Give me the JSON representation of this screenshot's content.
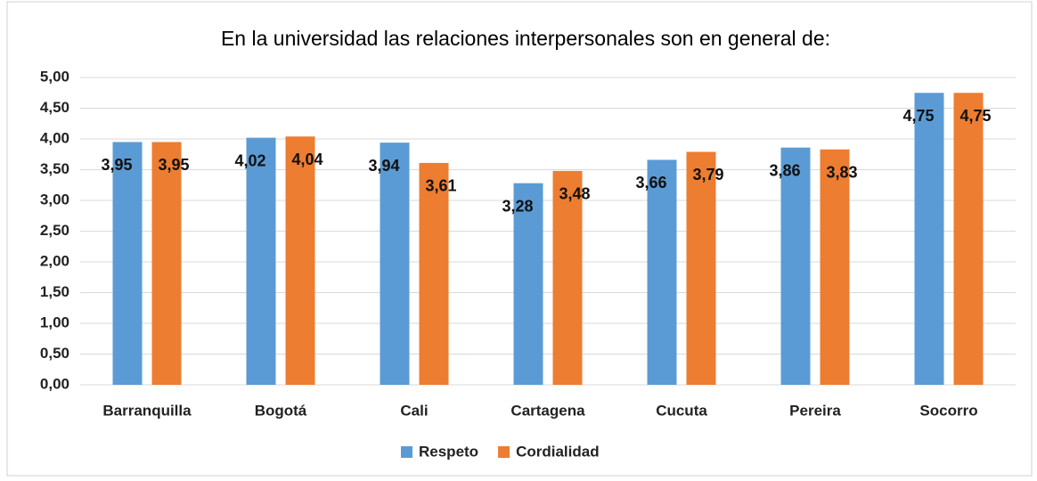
{
  "chart_data": {
    "type": "bar",
    "title": "En la universidad las relaciones interpersonales son en general de:",
    "categories": [
      "Barranquilla",
      "Bogotá",
      "Cali",
      "Cartagena",
      "Cucuta",
      "Pereira",
      "Socorro"
    ],
    "series": [
      {
        "name": "Respeto",
        "color": "#5b9bd5",
        "values": [
          3.95,
          4.02,
          3.94,
          3.28,
          3.66,
          3.86,
          4.75
        ],
        "value_labels": [
          "3,95",
          "4,02",
          "3,94",
          "3,28",
          "3,66",
          "3,86",
          "4,75"
        ]
      },
      {
        "name": "Cordialidad",
        "color": "#ed7d31",
        "values": [
          3.95,
          4.04,
          3.61,
          3.48,
          3.79,
          3.83,
          4.75
        ],
        "value_labels": [
          "3,95",
          "4,04",
          "3,61",
          "3,48",
          "3,79",
          "3,83",
          "4,75"
        ]
      }
    ],
    "ylim": [
      0,
      5
    ],
    "yticks": [
      {
        "value": 0,
        "label": "0,00"
      },
      {
        "value": 0.5,
        "label": "0,50"
      },
      {
        "value": 1,
        "label": "1,00"
      },
      {
        "value": 1.5,
        "label": "1,50"
      },
      {
        "value": 2,
        "label": "2,00"
      },
      {
        "value": 2.5,
        "label": "2,50"
      },
      {
        "value": 3,
        "label": "3,00"
      },
      {
        "value": 3.5,
        "label": "3,50"
      },
      {
        "value": 4,
        "label": "4,00"
      },
      {
        "value": 4.5,
        "label": "4,50"
      },
      {
        "value": 5,
        "label": "5,00"
      }
    ],
    "grid": true,
    "legend": "bottom"
  }
}
